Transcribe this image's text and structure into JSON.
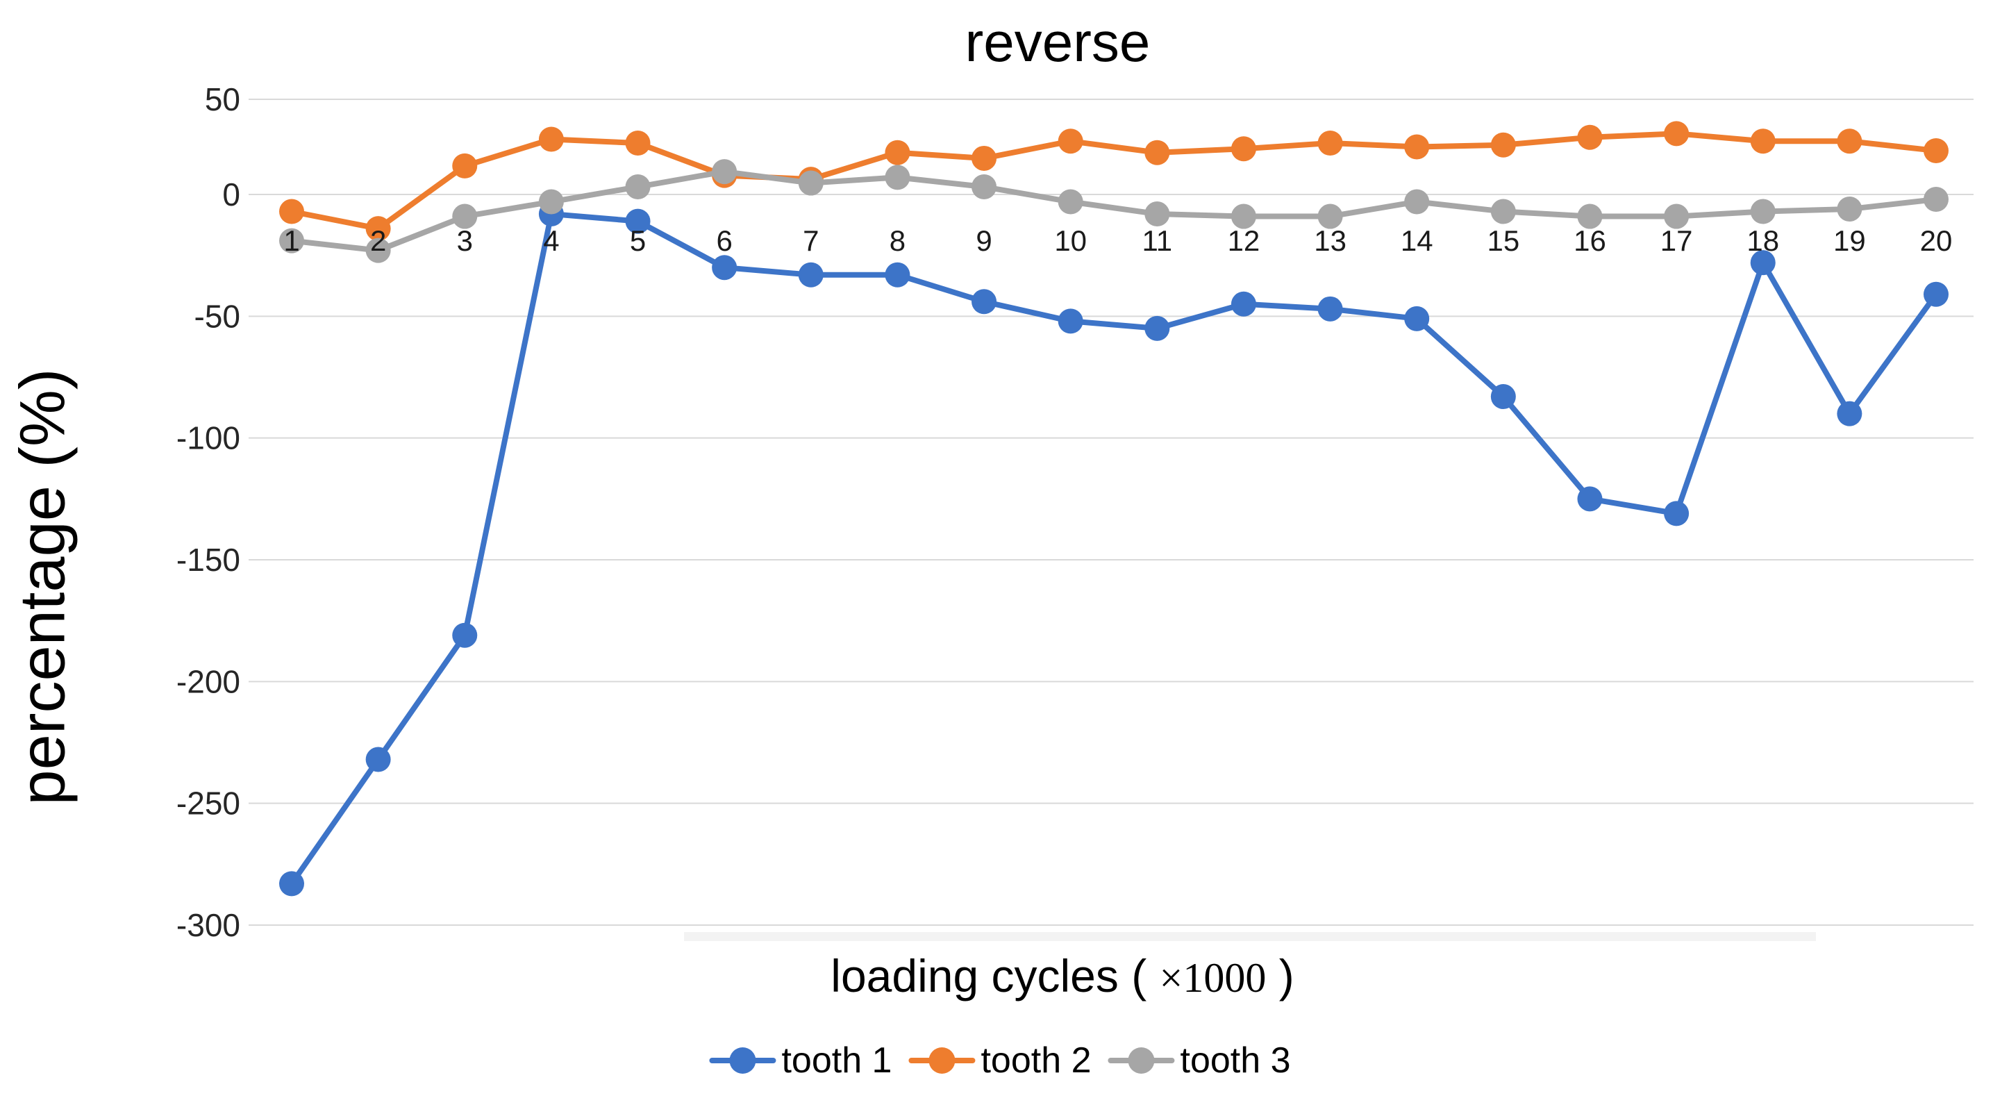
{
  "figure": {
    "title": "reverse",
    "y_axis": {
      "title": "percentage (%)",
      "tick_labels": [
        "50",
        "0",
        "-50",
        "-100",
        "-150",
        "-200",
        "-250",
        "-300"
      ]
    },
    "x_axis": {
      "title_prefix": "loading cycles ( ",
      "title_multiplier": "×1000",
      "title_suffix": " )"
    },
    "legend": [
      {
        "label": "tooth 1"
      },
      {
        "label": "tooth 2"
      },
      {
        "label": "tooth 3"
      }
    ]
  },
  "chart_data": {
    "type": "line",
    "title": "reverse",
    "xlabel": "loading cycles (×1000)",
    "ylabel": "percentage (%)",
    "x": [
      1,
      2,
      3,
      4,
      5,
      6,
      7,
      8,
      9,
      10,
      11,
      12,
      13,
      14,
      15,
      16,
      17,
      18,
      19,
      20
    ],
    "ylim": [
      -300,
      50
    ],
    "yticks": [
      50,
      0,
      -50,
      -100,
      -150,
      -200,
      -250,
      -300
    ],
    "grid": true,
    "legend_position": "bottom",
    "marker": "circle",
    "series": [
      {
        "name": "tooth 1",
        "color": "#3D74C8",
        "values": [
          -283,
          -232,
          -181,
          -8,
          -11,
          -30,
          -33,
          -33,
          -44,
          -52,
          -55,
          -45,
          -47,
          -51,
          -83,
          -125,
          -131,
          -28,
          -90,
          -41
        ]
      },
      {
        "name": "tooth 2",
        "color": "#EE7D2E",
        "values": [
          -7,
          -14,
          15,
          29,
          27,
          10,
          8,
          22,
          19,
          28,
          22,
          24,
          27,
          25,
          26,
          30,
          32,
          28,
          28,
          23
        ]
      },
      {
        "name": "tooth 3",
        "color": "#A6A6A6",
        "values": [
          -19,
          -23,
          -9,
          -3,
          4,
          12,
          6,
          9,
          4,
          -3,
          -8,
          -9,
          -9,
          -3,
          -7,
          -9,
          -9,
          -7,
          -6,
          -2
        ]
      }
    ]
  },
  "colors": {
    "gridline": "#D9D9D9",
    "tick_text": "#262626",
    "category_text": "#1A1A1A",
    "artifact_band": "#EBEBEB",
    "series_blue": "#3D74C8",
    "series_orange": "#EE7D2E",
    "series_gray": "#A6A6A6"
  }
}
